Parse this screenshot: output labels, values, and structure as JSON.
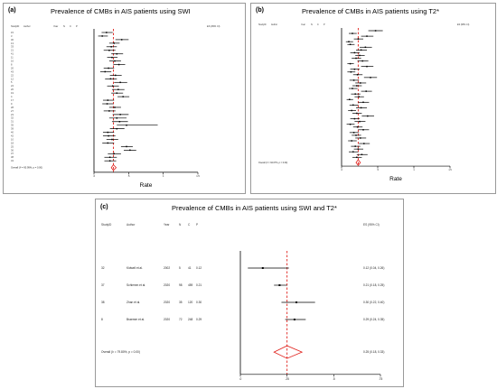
{
  "panels": {
    "a": {
      "label": "(a)",
      "title": "Prevalence of CMBs in AIS patients using SWI"
    },
    "b": {
      "label": "(b)",
      "title": "Prevalence of CMBs in AIS patients using T2*"
    },
    "c": {
      "label": "(c)",
      "title": "Prevalence of CMBs in AIS patients using SWI and T2*"
    }
  },
  "chart_data": [
    {
      "type": "forest",
      "panel": "a",
      "title": "Prevalence of CMBs in AIS patients using SWI",
      "columns": [
        "StudyID",
        "Author",
        "Year",
        "N",
        "C",
        "P",
        "ES (95% CI)"
      ],
      "xlabel": "Rate",
      "xticks": [
        ".0",
        ".5",
        "1",
        "1.5"
      ],
      "xlim": [
        0,
        1.5
      ],
      "null_line": 0,
      "pooled_line": 0.28,
      "studies": [
        {
          "id": "15",
          "es": 0.18,
          "lo": 0.11,
          "hi": 0.27
        },
        {
          "id": "3",
          "es": 0.12,
          "lo": 0.06,
          "hi": 0.2
        },
        {
          "id": "30",
          "es": 0.4,
          "lo": 0.31,
          "hi": 0.5
        },
        {
          "id": "13",
          "es": 0.29,
          "lo": 0.22,
          "hi": 0.37
        },
        {
          "id": "33",
          "es": 0.25,
          "lo": 0.18,
          "hi": 0.33
        },
        {
          "id": "21",
          "es": 0.22,
          "lo": 0.14,
          "hi": 0.31
        },
        {
          "id": "41",
          "es": 0.33,
          "lo": 0.25,
          "hi": 0.42
        },
        {
          "id": "11",
          "es": 0.26,
          "lo": 0.19,
          "hi": 0.34
        },
        {
          "id": "16",
          "es": 0.3,
          "lo": 0.22,
          "hi": 0.39
        },
        {
          "id": "8",
          "es": 0.36,
          "lo": 0.28,
          "hi": 0.45
        },
        {
          "id": "20",
          "es": 0.21,
          "lo": 0.14,
          "hi": 0.29
        },
        {
          "id": "43",
          "es": 0.16,
          "lo": 0.09,
          "hi": 0.25
        },
        {
          "id": "22",
          "es": 0.31,
          "lo": 0.23,
          "hi": 0.4
        },
        {
          "id": "12",
          "es": 0.24,
          "lo": 0.16,
          "hi": 0.33
        },
        {
          "id": "5",
          "es": 0.38,
          "lo": 0.29,
          "hi": 0.48
        },
        {
          "id": "24",
          "es": 0.27,
          "lo": 0.19,
          "hi": 0.36
        },
        {
          "id": "26",
          "es": 0.35,
          "lo": 0.26,
          "hi": 0.44
        },
        {
          "id": "19",
          "es": 0.33,
          "lo": 0.25,
          "hi": 0.42
        },
        {
          "id": "4",
          "es": 0.42,
          "lo": 0.34,
          "hi": 0.51
        },
        {
          "id": "17",
          "es": 0.2,
          "lo": 0.13,
          "hi": 0.29
        },
        {
          "id": "9",
          "es": 0.19,
          "lo": 0.12,
          "hi": 0.28
        },
        {
          "id": "28",
          "es": 0.3,
          "lo": 0.22,
          "hi": 0.39
        },
        {
          "id": "27",
          "es": 0.22,
          "lo": 0.14,
          "hi": 0.31
        },
        {
          "id": "23",
          "es": 0.38,
          "lo": 0.27,
          "hi": 0.5
        },
        {
          "id": "32",
          "es": 0.33,
          "lo": 0.22,
          "hi": 0.47
        },
        {
          "id": "31",
          "es": 0.37,
          "lo": 0.26,
          "hi": 0.49
        },
        {
          "id": "35",
          "es": 0.47,
          "lo": 0.33,
          "hi": 0.92
        },
        {
          "id": "39",
          "es": 0.33,
          "lo": 0.23,
          "hi": 0.44
        },
        {
          "id": "40",
          "es": 0.2,
          "lo": 0.13,
          "hi": 0.29
        },
        {
          "id": "42",
          "es": 0.21,
          "lo": 0.13,
          "hi": 0.31
        },
        {
          "id": "10",
          "es": 0.26,
          "lo": 0.18,
          "hi": 0.35
        },
        {
          "id": "18",
          "es": 0.2,
          "lo": 0.12,
          "hi": 0.29
        },
        {
          "id": "25",
          "es": 0.47,
          "lo": 0.39,
          "hi": 0.56
        },
        {
          "id": "36",
          "es": 0.52,
          "lo": 0.43,
          "hi": 0.61
        },
        {
          "id": "37",
          "es": 0.29,
          "lo": 0.2,
          "hi": 0.39
        },
        {
          "id": "38",
          "es": 0.23,
          "lo": 0.15,
          "hi": 0.33
        },
        {
          "id": "34",
          "es": 0.23,
          "lo": 0.15,
          "hi": 0.32
        }
      ],
      "overall": {
        "label": "Overall (I² = 90.99%, p = 0.00)",
        "es": 0.28,
        "lo": 0.25,
        "hi": 0.32
      }
    },
    {
      "type": "forest",
      "panel": "b",
      "title": "Prevalence of CMBs in AIS patients using T2*",
      "columns": [
        "StudyID",
        "Author",
        "Year",
        "N",
        "C",
        "P",
        "ES (95% CI)"
      ],
      "xlabel": "Rate",
      "xticks": [
        ".0",
        ".5",
        "1",
        "1.5"
      ],
      "xlim": [
        0,
        1.5
      ],
      "null_line": 0,
      "pooled_line": 0.23,
      "studies": [
        {
          "es": 0.47,
          "lo": 0.37,
          "hi": 0.57
        },
        {
          "es": 0.15,
          "lo": 0.1,
          "hi": 0.21
        },
        {
          "es": 0.35,
          "lo": 0.27,
          "hi": 0.44
        },
        {
          "es": 0.23,
          "lo": 0.17,
          "hi": 0.3
        },
        {
          "es": 0.1,
          "lo": 0.06,
          "hi": 0.16
        },
        {
          "es": 0.12,
          "lo": 0.08,
          "hi": 0.18
        },
        {
          "es": 0.33,
          "lo": 0.25,
          "hi": 0.42
        },
        {
          "es": 0.27,
          "lo": 0.2,
          "hi": 0.35
        },
        {
          "es": 0.18,
          "lo": 0.12,
          "hi": 0.25
        },
        {
          "es": 0.25,
          "lo": 0.19,
          "hi": 0.32
        },
        {
          "es": 0.2,
          "lo": 0.14,
          "hi": 0.27
        },
        {
          "es": 0.29,
          "lo": 0.22,
          "hi": 0.37
        },
        {
          "es": 0.12,
          "lo": 0.08,
          "hi": 0.17
        },
        {
          "es": 0.35,
          "lo": 0.27,
          "hi": 0.44
        },
        {
          "es": 0.18,
          "lo": 0.12,
          "hi": 0.25
        },
        {
          "es": 0.13,
          "lo": 0.08,
          "hi": 0.19
        },
        {
          "es": 0.22,
          "lo": 0.16,
          "hi": 0.29
        },
        {
          "es": 0.4,
          "lo": 0.31,
          "hi": 0.49
        },
        {
          "es": 0.17,
          "lo": 0.11,
          "hi": 0.24
        },
        {
          "es": 0.26,
          "lo": 0.19,
          "hi": 0.34
        },
        {
          "es": 0.21,
          "lo": 0.15,
          "hi": 0.28
        },
        {
          "es": 0.15,
          "lo": 0.1,
          "hi": 0.22
        },
        {
          "es": 0.34,
          "lo": 0.27,
          "hi": 0.42
        },
        {
          "es": 0.19,
          "lo": 0.13,
          "hi": 0.26
        },
        {
          "es": 0.24,
          "lo": 0.18,
          "hi": 0.31
        },
        {
          "es": 0.11,
          "lo": 0.07,
          "hi": 0.16
        },
        {
          "es": 0.3,
          "lo": 0.23,
          "hi": 0.38
        },
        {
          "es": 0.16,
          "lo": 0.11,
          "hi": 0.23
        },
        {
          "es": 0.27,
          "lo": 0.2,
          "hi": 0.35
        },
        {
          "es": 0.14,
          "lo": 0.09,
          "hi": 0.2
        },
        {
          "es": 0.21,
          "lo": 0.15,
          "hi": 0.28
        },
        {
          "es": 0.36,
          "lo": 0.28,
          "hi": 0.45
        },
        {
          "es": 0.18,
          "lo": 0.12,
          "hi": 0.25
        },
        {
          "es": 0.25,
          "lo": 0.18,
          "hi": 0.33
        },
        {
          "es": 0.12,
          "lo": 0.07,
          "hi": 0.18
        },
        {
          "es": 0.22,
          "lo": 0.16,
          "hi": 0.29
        },
        {
          "es": 0.3,
          "lo": 0.23,
          "hi": 0.38
        },
        {
          "es": 0.17,
          "lo": 0.11,
          "hi": 0.24
        },
        {
          "es": 0.2,
          "lo": 0.14,
          "hi": 0.27
        },
        {
          "es": 0.26,
          "lo": 0.19,
          "hi": 0.34
        },
        {
          "es": 0.14,
          "lo": 0.09,
          "hi": 0.21
        },
        {
          "es": 0.31,
          "lo": 0.24,
          "hi": 0.39
        },
        {
          "es": 0.19,
          "lo": 0.13,
          "hi": 0.26
        },
        {
          "es": 0.23,
          "lo": 0.17,
          "hi": 0.3
        },
        {
          "es": 0.16,
          "lo": 0.1,
          "hi": 0.23
        },
        {
          "es": 0.28,
          "lo": 0.21,
          "hi": 0.36
        },
        {
          "es": 0.21,
          "lo": 0.15,
          "hi": 0.28
        }
      ],
      "overall": {
        "label": "Overall (I² = 94.67%, p = 0.00)",
        "es": 0.23,
        "lo": 0.2,
        "hi": 0.26
      }
    },
    {
      "type": "forest",
      "panel": "c",
      "title": "Prevalence of CMBs in AIS patients using SWI and T2*",
      "columns": [
        "StudyID",
        "Author",
        "Year",
        "N",
        "C",
        "P",
        "ES (95% CI)"
      ],
      "xlabel": "Rate",
      "xticks": [
        ".0",
        ".25",
        ".5",
        ".75"
      ],
      "xlim": [
        0,
        0.75
      ],
      "null_line": 0,
      "pooled_line": 0.25,
      "studies": [
        {
          "id": "32",
          "author": "Kidwell et al.",
          "year": "2002",
          "n": "5",
          "c": "41",
          "p": "0.12",
          "es": 0.12,
          "lo": 0.04,
          "hi": 0.26,
          "es_text": "0.12 (0.04, 0.26)"
        },
        {
          "id": "37",
          "author": "Schlemm et al.",
          "year": "2020",
          "n": "98",
          "c": "459",
          "p": "0.21",
          "es": 0.21,
          "lo": 0.18,
          "hi": 0.25,
          "es_text": "0.21 (0.18, 0.25)"
        },
        {
          "id": "38",
          "author": "Zhan et al.",
          "year": "2020",
          "n": "35",
          "c": "120",
          "p": "0.30",
          "es": 0.3,
          "lo": 0.22,
          "hi": 0.4,
          "es_text": "0.30 (0.22, 0.40)"
        },
        {
          "id": "8",
          "author": "Braemer et al.",
          "year": "2020",
          "n": "72",
          "c": "248",
          "p": "0.29",
          "es": 0.29,
          "lo": 0.24,
          "hi": 0.35,
          "es_text": "0.29 (0.24, 0.35)"
        }
      ],
      "overall": {
        "label": "Overall (I² = 79.80%, p = 0.00)",
        "es": 0.25,
        "lo": 0.18,
        "hi": 0.33,
        "es_text": "0.25 (0.18, 0.33)"
      }
    }
  ]
}
